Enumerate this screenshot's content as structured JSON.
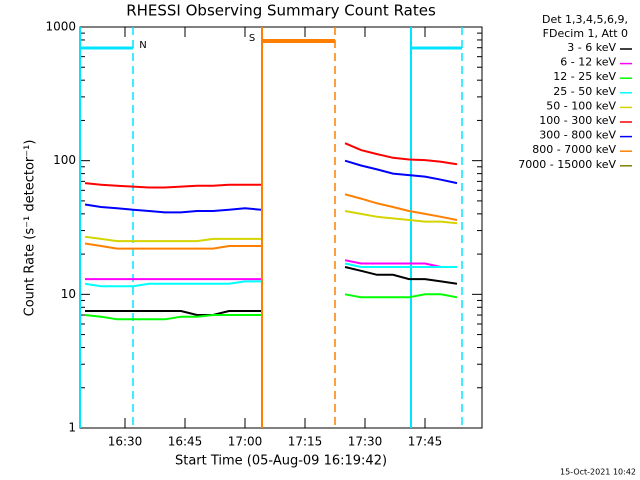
{
  "chart_data": {
    "type": "line",
    "title": "RHESSI Observing Summary Count Rates",
    "xlabel": "Start Time (05-Aug-09 16:19:42)",
    "ylabel": "Count Rate (s⁻¹ detector⁻¹)",
    "legend_header": [
      "Det 1,3,4,5,6,9,",
      "FDecim 1, Att 0"
    ],
    "footer": "15-Oct-2021 10:42",
    "log_y": true,
    "legend": "outside-right",
    "xlim": [
      18.75,
      119.25
    ],
    "xticks": [
      {
        "value": 30,
        "label": "16:30"
      },
      {
        "value": 45,
        "label": "16:45"
      },
      {
        "value": 60,
        "label": "17:00"
      },
      {
        "value": 75,
        "label": "17:15"
      },
      {
        "value": 90,
        "label": "17:30"
      },
      {
        "value": 105,
        "label": "17:45"
      }
    ],
    "ylim": [
      1,
      1000
    ],
    "yticks": [
      1,
      10,
      100,
      1000
    ],
    "intervals": [
      {
        "label": "N",
        "start": 18.75,
        "end": 32,
        "color": "#00e5ff"
      },
      {
        "label": "S",
        "start": 64.25,
        "end": 82.5,
        "color": "#ff7f00"
      },
      {
        "start": 101.5,
        "end": 114.25,
        "color": "#00e5ff"
      }
    ],
    "x": [
      20,
      24,
      28,
      32,
      36,
      40,
      44,
      48,
      52,
      56,
      60,
      64,
      75,
      85,
      89,
      93,
      97,
      101,
      105,
      109,
      113
    ],
    "series": [
      {
        "name": "3 - 6 keV",
        "color": "#000000",
        "values": [
          7.5,
          7.5,
          7.5,
          7.5,
          7.5,
          7.5,
          7.5,
          7,
          7,
          7.5,
          7.5,
          7.5,
          null,
          16,
          15,
          14,
          14,
          13,
          13,
          12.5,
          12
        ]
      },
      {
        "name": "6 - 12 keV",
        "color": "#ff00ff",
        "values": [
          13,
          13,
          13,
          13,
          13,
          13,
          13,
          13,
          13,
          13,
          13,
          13,
          null,
          18,
          17,
          17,
          17,
          17,
          17,
          16,
          16
        ]
      },
      {
        "name": "12 - 25 keV",
        "color": "#00ff00",
        "values": [
          7,
          6.8,
          6.5,
          6.5,
          6.5,
          6.5,
          6.8,
          6.8,
          7,
          7,
          7,
          7,
          null,
          10,
          9.5,
          9.5,
          9.5,
          9.5,
          10,
          10,
          9.5
        ]
      },
      {
        "name": "25 - 50 keV",
        "color": "#00ffff",
        "values": [
          12,
          11.5,
          11.5,
          11.5,
          12,
          12,
          12,
          12,
          12,
          12,
          12.5,
          12.5,
          null,
          17,
          16,
          16,
          16,
          16,
          16,
          16,
          16
        ]
      },
      {
        "name": "50 - 100 keV",
        "color": "#d4d400",
        "values": [
          27,
          26,
          25,
          25,
          25,
          25,
          25,
          25,
          26,
          26,
          26,
          26,
          null,
          42,
          40,
          38,
          37,
          36,
          35,
          35,
          34
        ]
      },
      {
        "name": "100 - 300 keV",
        "color": "#ff0000",
        "values": [
          68,
          66,
          65,
          64,
          63,
          63,
          64,
          65,
          65,
          66,
          66,
          66,
          null,
          135,
          120,
          112,
          105,
          102,
          101,
          98,
          94
        ]
      },
      {
        "name": "300 - 800 keV",
        "color": "#0000ff",
        "values": [
          47,
          45,
          44,
          43,
          42,
          41,
          41,
          42,
          42,
          43,
          44,
          43,
          null,
          100,
          92,
          86,
          80,
          78,
          76,
          72,
          68
        ]
      },
      {
        "name": "800 - 7000 keV",
        "color": "#ff8000",
        "values": [
          24,
          23,
          22,
          22,
          22,
          22,
          22,
          22,
          22,
          23,
          23,
          23,
          null,
          56,
          52,
          48,
          45,
          42,
          40,
          38,
          36
        ]
      },
      {
        "name": "7000 - 15000 keV",
        "color": "#808000",
        "values": [
          null,
          null,
          null,
          null,
          null,
          null,
          null,
          null,
          null,
          null,
          null,
          null,
          null,
          null,
          null,
          null,
          null,
          null,
          null,
          null,
          null
        ]
      }
    ]
  }
}
